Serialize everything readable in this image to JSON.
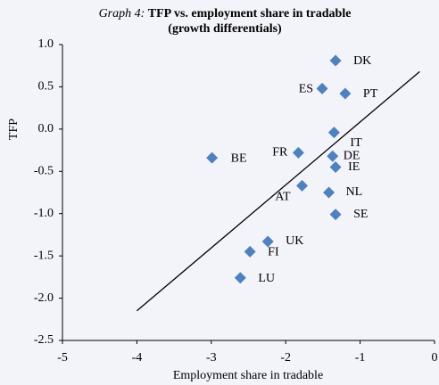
{
  "chart_data": {
    "type": "scatter",
    "title_label": "Graph 4:",
    "title": "TFP vs. employment share in tradable",
    "subtitle": "(growth differentials)",
    "xlabel": "Employment share in tradable",
    "ylabel": "TFP",
    "color": "#4f81bd",
    "labels": [
      "DK",
      "ES",
      "PT",
      "IT",
      "FR",
      "DE",
      "IE",
      "BE",
      "AT",
      "NL",
      "SE",
      "UK",
      "FI",
      "LU"
    ],
    "x": [
      -1.33,
      -1.51,
      -1.2,
      -1.35,
      -1.83,
      -1.37,
      -1.33,
      -2.99,
      -1.78,
      -1.42,
      -1.33,
      -2.24,
      -2.48,
      -2.61
    ],
    "y": [
      0.81,
      0.48,
      0.42,
      -0.04,
      -0.28,
      -0.32,
      -0.45,
      -0.34,
      -0.67,
      -0.75,
      -1.01,
      -1.33,
      -1.45,
      -1.76
    ],
    "trendline": {
      "x": [
        -4,
        -0.2
      ],
      "y": [
        -2.15,
        0.68
      ]
    },
    "xlim": [
      -5,
      0
    ],
    "xticks": [
      -5,
      -4,
      -3,
      -2,
      -1,
      0
    ],
    "ylim": [
      -2.5,
      1.0
    ],
    "yticks": [
      {
        "value": -2.5,
        "label": "-2.5"
      },
      {
        "value": -2.0,
        "label": "-2.0"
      },
      -1.5,
      {
        "value": -1.0,
        "label": "-1.0"
      },
      -0.5,
      {
        "value": 0.0,
        "label": "0.0"
      },
      0.5,
      {
        "value": 1.0,
        "label": "1.0"
      }
    ],
    "grid": false
  }
}
